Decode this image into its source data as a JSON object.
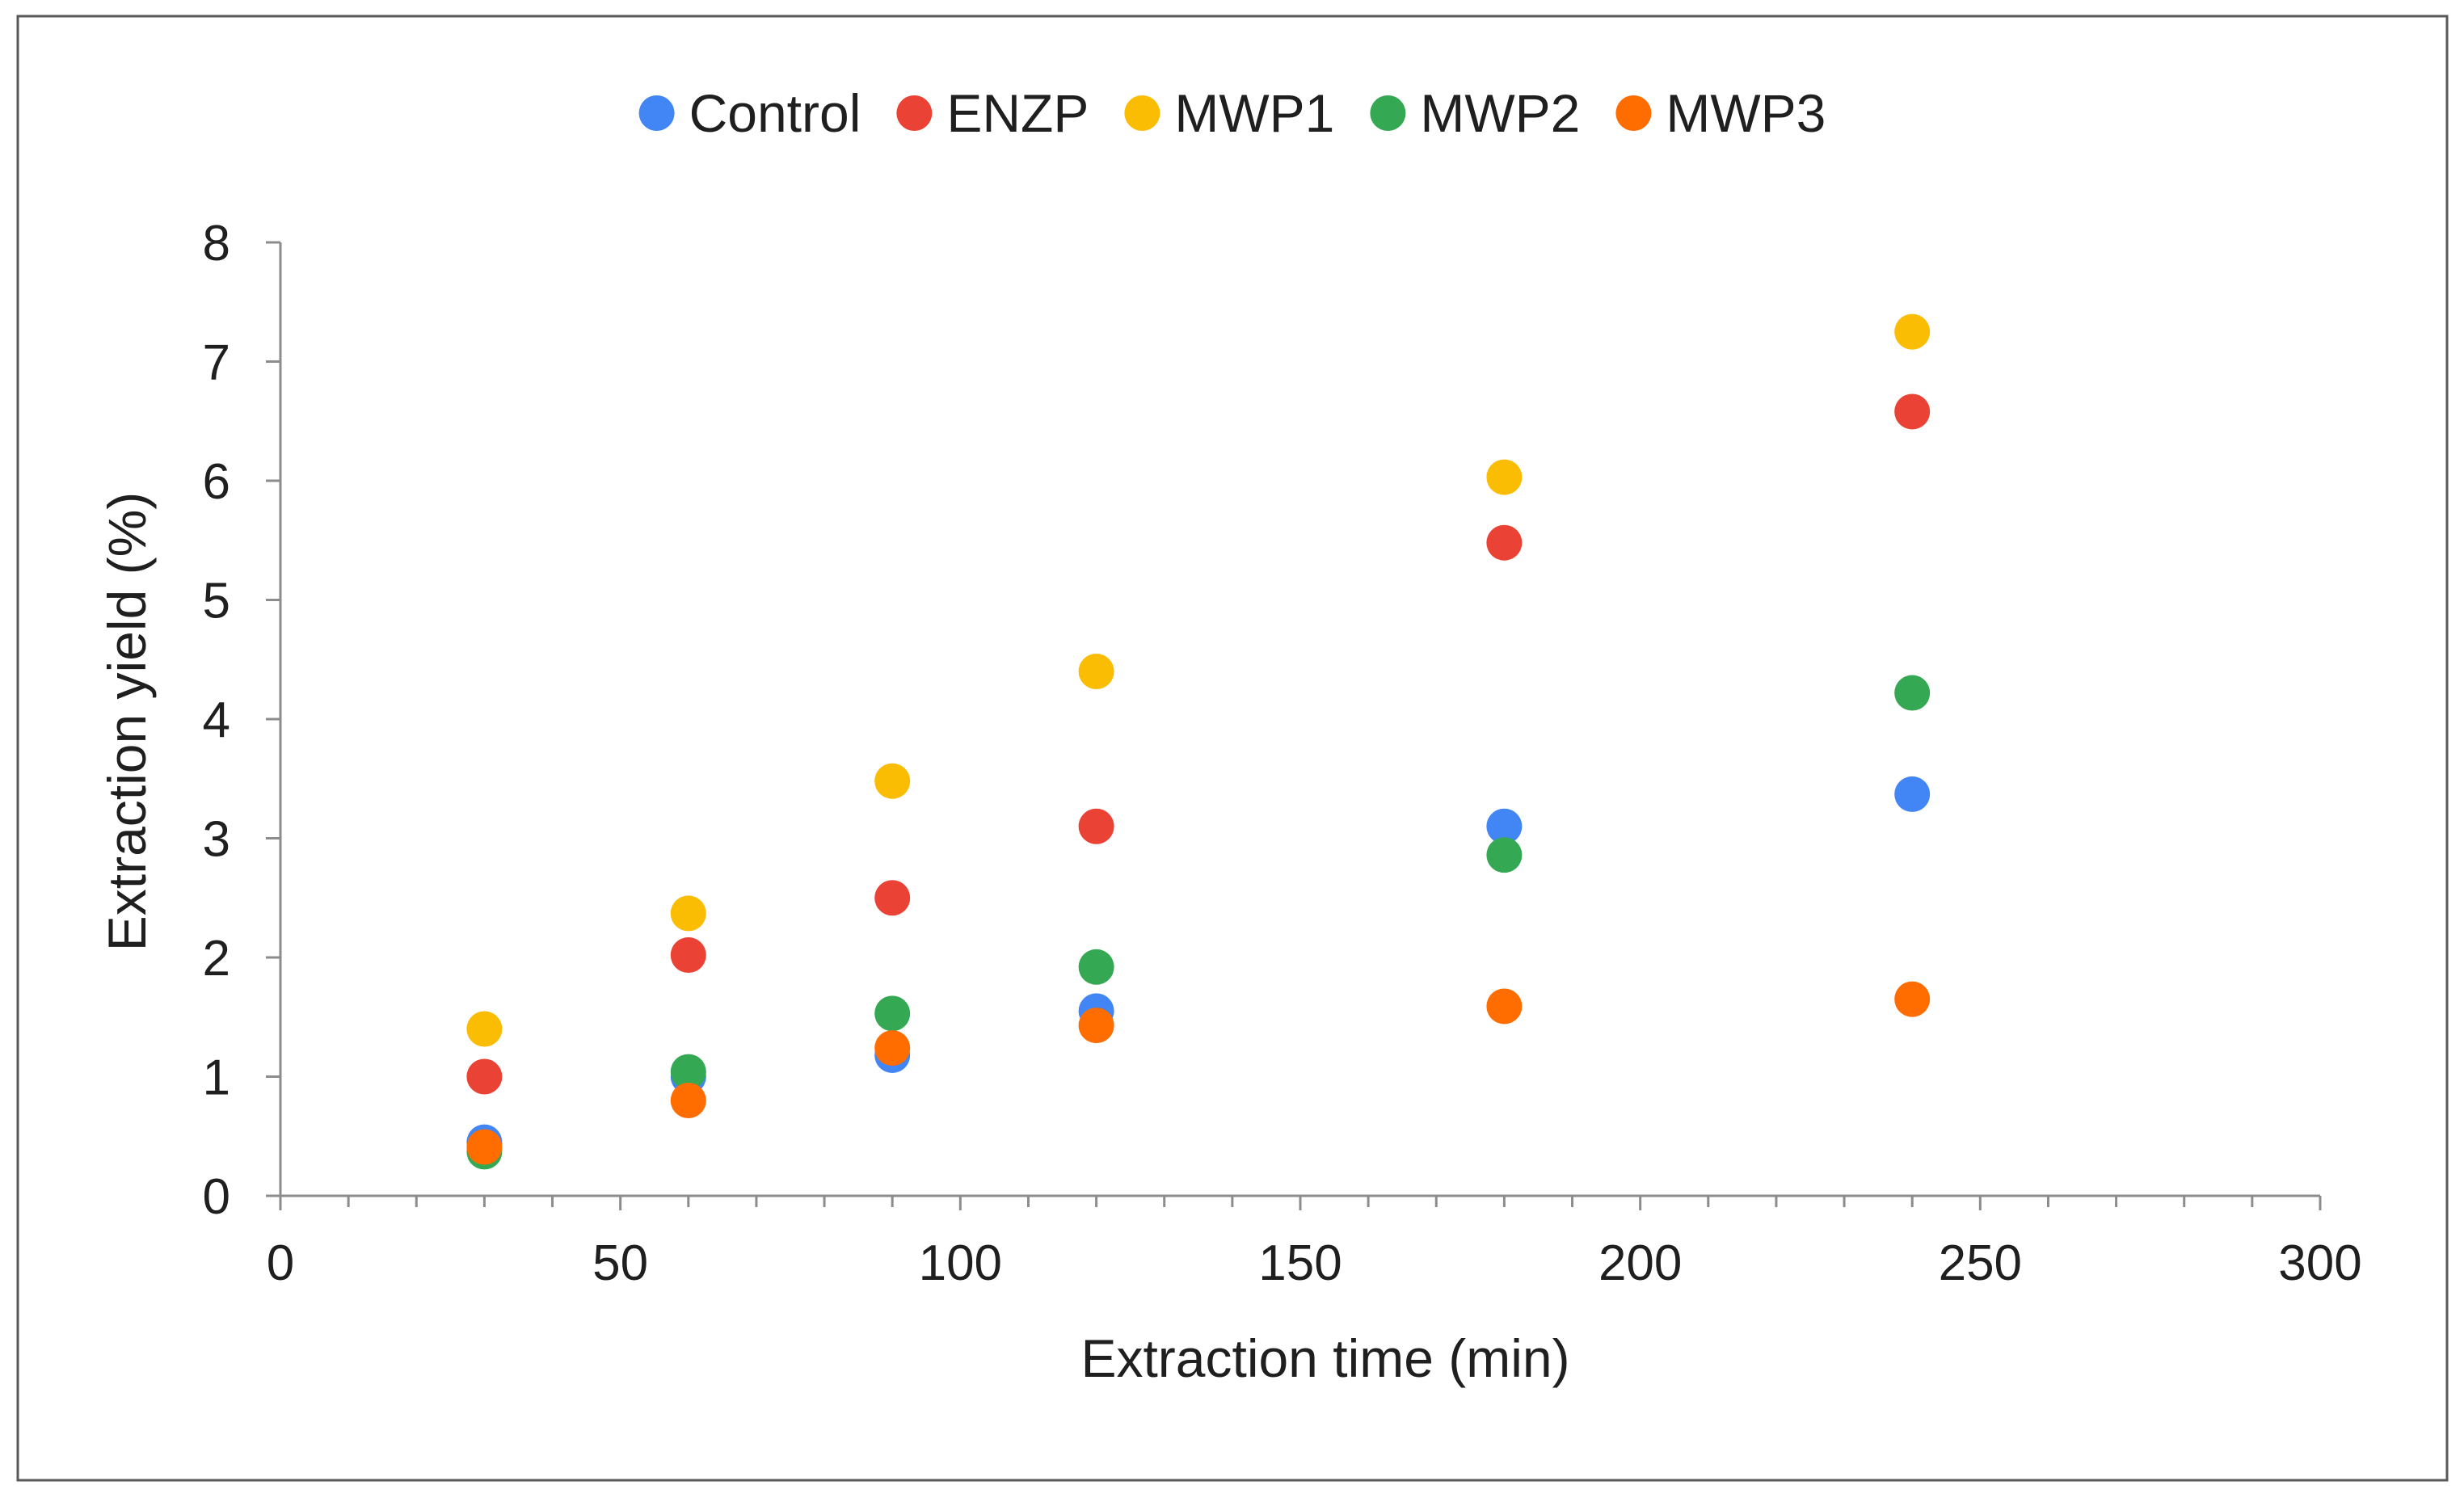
{
  "chart_data": {
    "type": "scatter",
    "title": "",
    "xlabel": "Extraction time (min)",
    "ylabel": "Extraction yield (%)",
    "xlim": [
      0,
      300
    ],
    "ylim": [
      0,
      8
    ],
    "xticks": [
      0,
      50,
      100,
      150,
      200,
      250,
      300
    ],
    "yticks": [
      0,
      1,
      2,
      3,
      4,
      5,
      6,
      7,
      8
    ],
    "grid": false,
    "legend_position": "top-center",
    "series": [
      {
        "name": "Control",
        "color": "#4285F4",
        "points": [
          [
            30,
            0.45
          ],
          [
            60,
            1.0
          ],
          [
            90,
            1.18
          ],
          [
            120,
            1.55
          ],
          [
            180,
            3.1
          ],
          [
            240,
            3.37
          ]
        ]
      },
      {
        "name": "ENZP",
        "color": "#EA4335",
        "points": [
          [
            30,
            1.0
          ],
          [
            60,
            2.02
          ],
          [
            90,
            2.5
          ],
          [
            120,
            3.1
          ],
          [
            180,
            5.48
          ],
          [
            240,
            6.58
          ]
        ]
      },
      {
        "name": "MWP1",
        "color": "#FBBC04",
        "points": [
          [
            30,
            1.4
          ],
          [
            60,
            2.37
          ],
          [
            90,
            3.48
          ],
          [
            120,
            4.4
          ],
          [
            180,
            6.03
          ],
          [
            240,
            7.25
          ]
        ]
      },
      {
        "name": "MWP2",
        "color": "#34A853",
        "points": [
          [
            30,
            0.37
          ],
          [
            60,
            1.04
          ],
          [
            90,
            1.53
          ],
          [
            120,
            1.92
          ],
          [
            180,
            2.86
          ],
          [
            240,
            4.22
          ]
        ]
      },
      {
        "name": "MWP3",
        "color": "#FF6D01",
        "points": [
          [
            30,
            0.41
          ],
          [
            60,
            0.8
          ],
          [
            90,
            1.24
          ],
          [
            120,
            1.43
          ],
          [
            180,
            1.59
          ],
          [
            240,
            1.65
          ]
        ]
      }
    ]
  }
}
